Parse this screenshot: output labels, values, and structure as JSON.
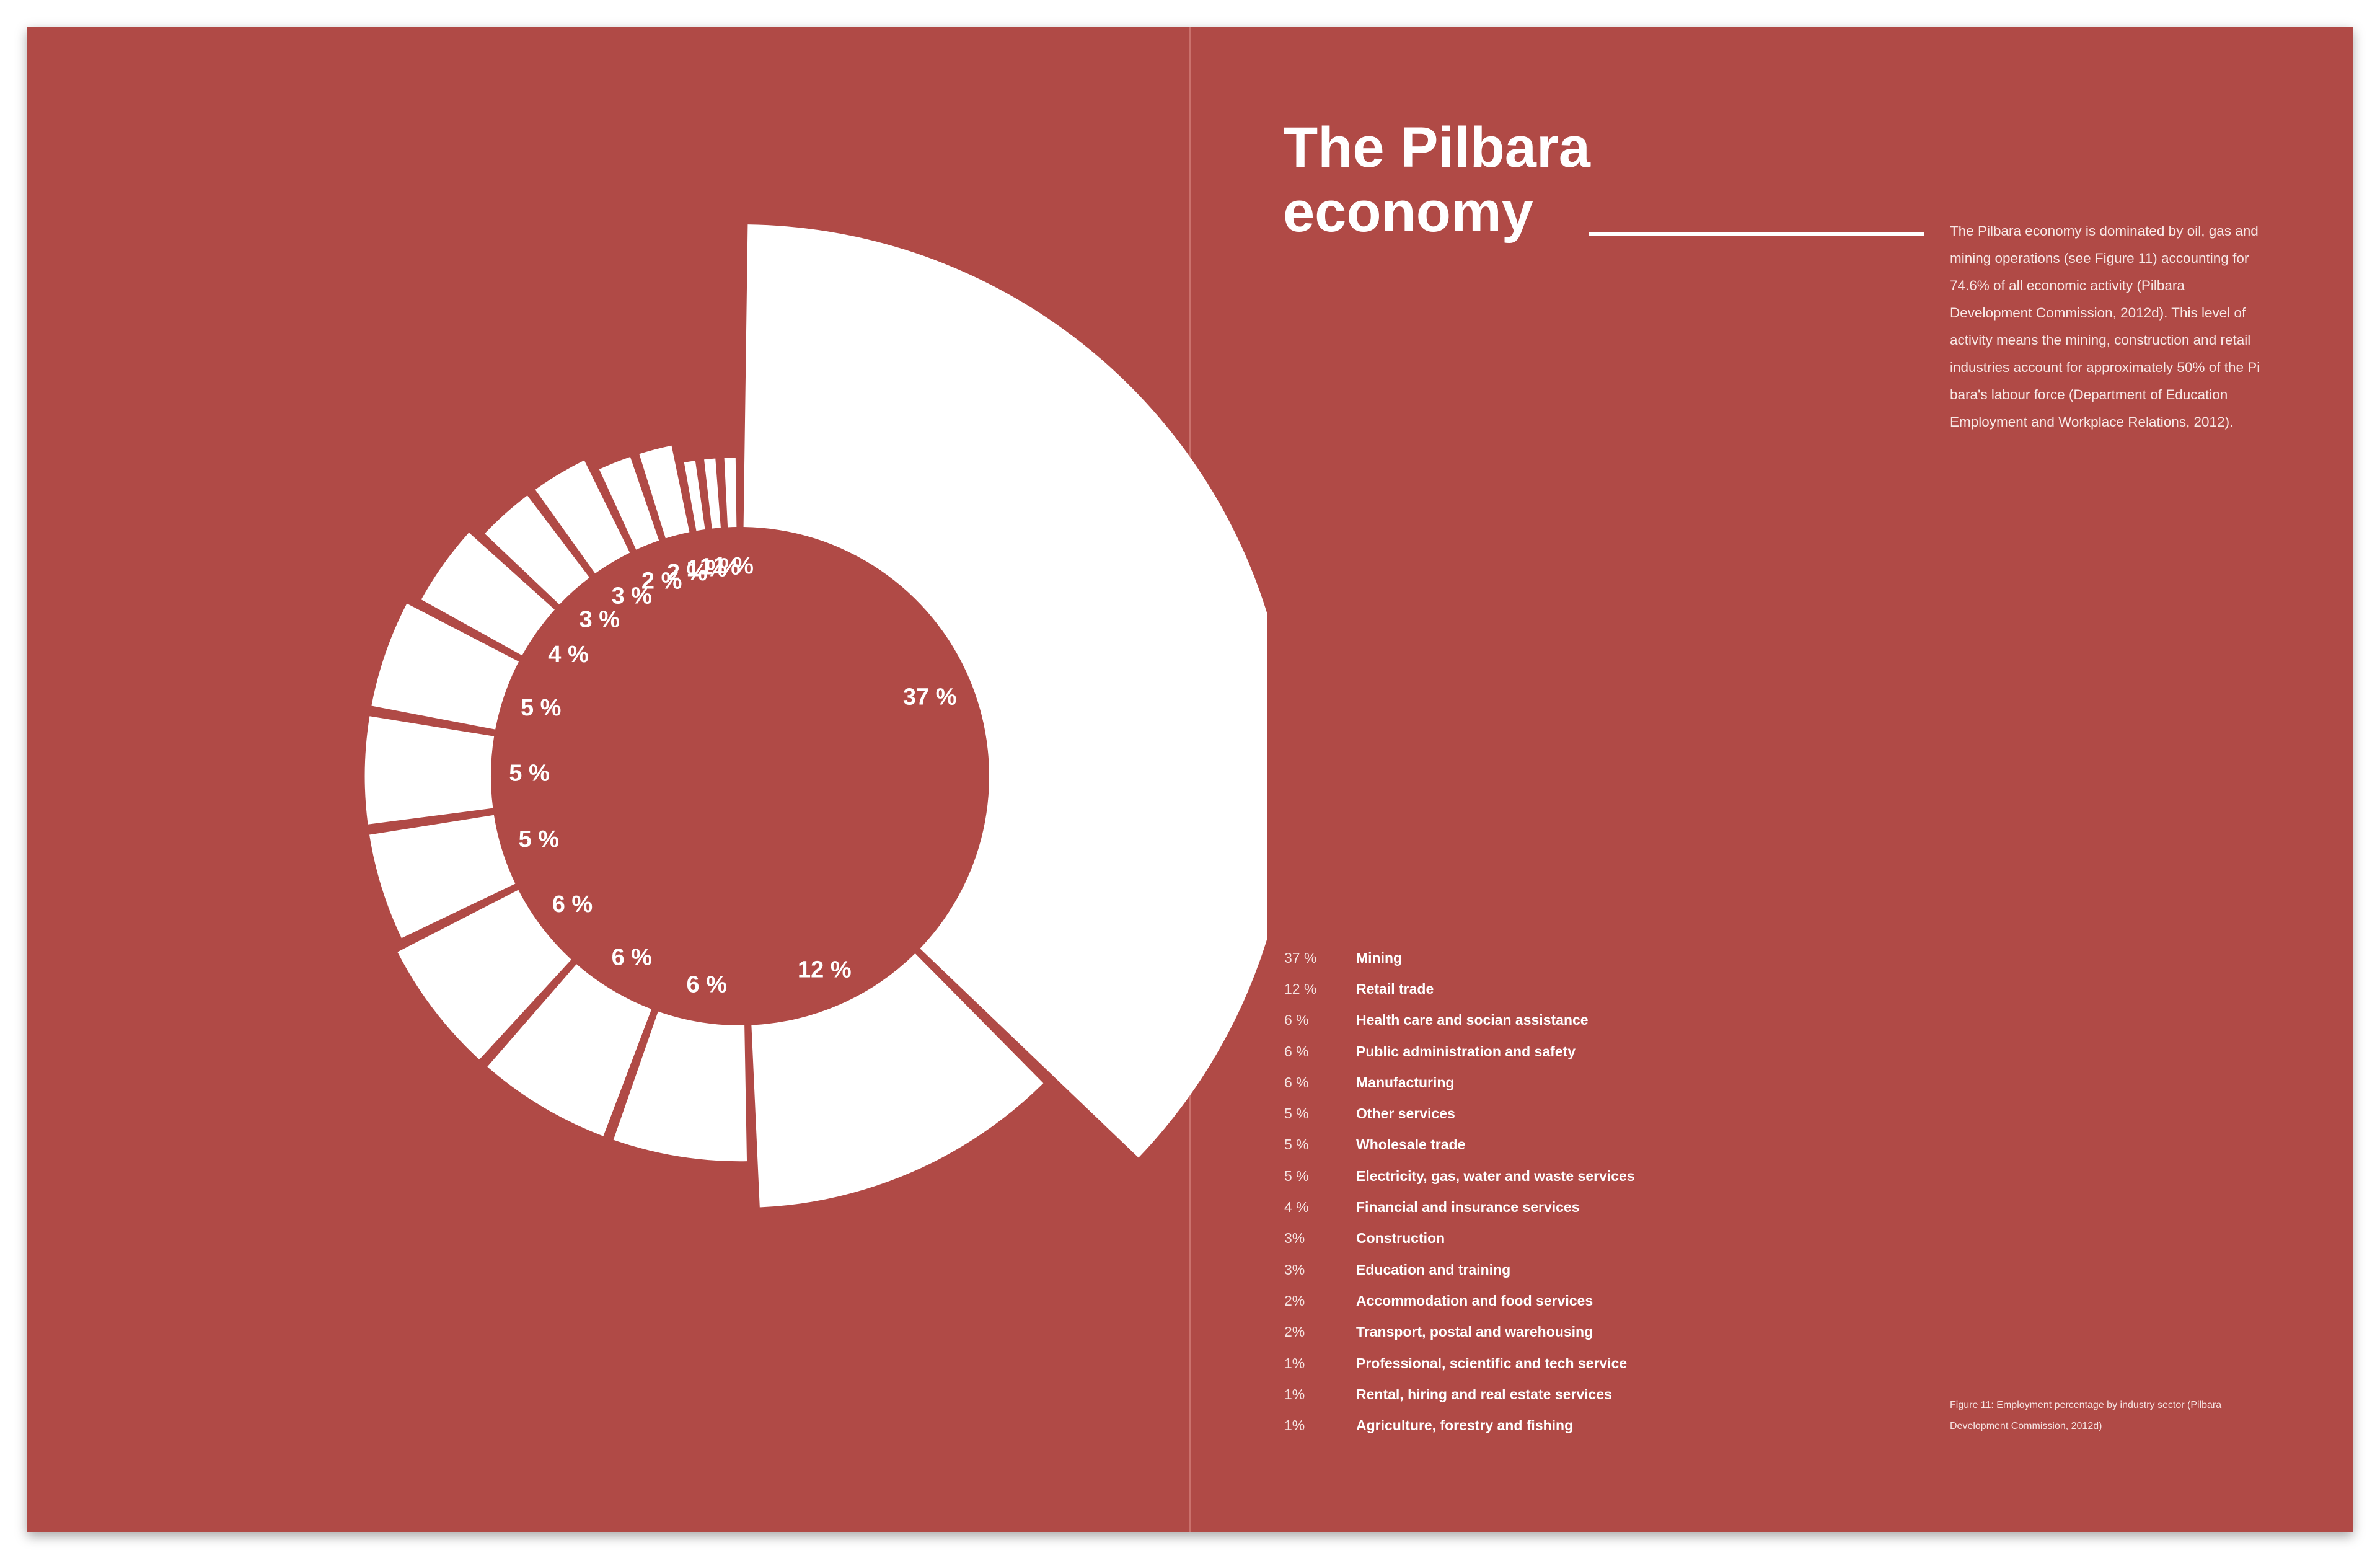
{
  "page": {
    "title": "The Pilbara economy",
    "intro": "The Pilbara economy is dominated by oil, gas and mining operations (see Figure 11) accounting for 74.6% of all economic activity (Pilbara Development Commission, 2012d). This level of activity means the mining, construction and retail industries account for approximately 50% of the Pi bara's labour force (Department of Education Employment and Workplace Relations, 2012).",
    "caption": "Figure 11: Employment percentage by industry sector (Pilbara Development Commission, 2012d)"
  },
  "colors": {
    "background": "#b04a46",
    "segments": "#ffffff",
    "text": "#ffffff"
  },
  "legend": [
    {
      "pct": "37 %",
      "name": "Mining"
    },
    {
      "pct": "12 %",
      "name": "Retail trade"
    },
    {
      "pct": "6 %",
      "name": "Health care and socian assistance"
    },
    {
      "pct": "6 %",
      "name": "Public administration and safety"
    },
    {
      "pct": "6 %",
      "name": "Manufacturing"
    },
    {
      "pct": "5 %",
      "name": "Other services"
    },
    {
      "pct": "5 %",
      "name": "Wholesale trade"
    },
    {
      "pct": "5 %",
      "name": "Electricity, gas, water and waste services"
    },
    {
      "pct": "4 %",
      "name": "Financial and insurance services"
    },
    {
      "pct": "3%",
      "name": "Construction"
    },
    {
      "pct": "3%",
      "name": "Education and training"
    },
    {
      "pct": "2%",
      "name": "Accommodation and food services"
    },
    {
      "pct": "2%",
      "name": "Transport, postal and warehousing"
    },
    {
      "pct": "1%",
      "name": "Professional, scientific and tech service"
    },
    {
      "pct": "1%",
      "name": "Rental, hiring and real estate services"
    },
    {
      "pct": "1%",
      "name": "Agriculture, forestry and fishing"
    }
  ],
  "chart_data": {
    "type": "pie",
    "variant": "exploded radial bars (varying outer radius)",
    "categories": [
      "Mining",
      "Retail trade",
      "Health care and socian assistance",
      "Public administration and safety",
      "Manufacturing",
      "Other services",
      "Wholesale trade",
      "Electricity, gas, water and waste services",
      "Financial and insurance services",
      "Construction",
      "Education and training",
      "Accommodation and food services",
      "Transport, postal and warehousing",
      "Professional, scientific and tech service",
      "Rental, hiring and real estate services",
      "Agriculture, forestry and fishing"
    ],
    "values": [
      37,
      12,
      6,
      6,
      6,
      5,
      5,
      5,
      4,
      3,
      3,
      2,
      2,
      1,
      1,
      1
    ],
    "labels": [
      "37 %",
      "12 %",
      "6 %",
      "6 %",
      "6 %",
      "5 %",
      "5 %",
      "5 %",
      "4 %",
      "3 %",
      "3 %",
      "2 %",
      "2 %",
      "1 %",
      "1 %",
      "1 %"
    ],
    "order": "clockwise from top",
    "legend": "right"
  }
}
